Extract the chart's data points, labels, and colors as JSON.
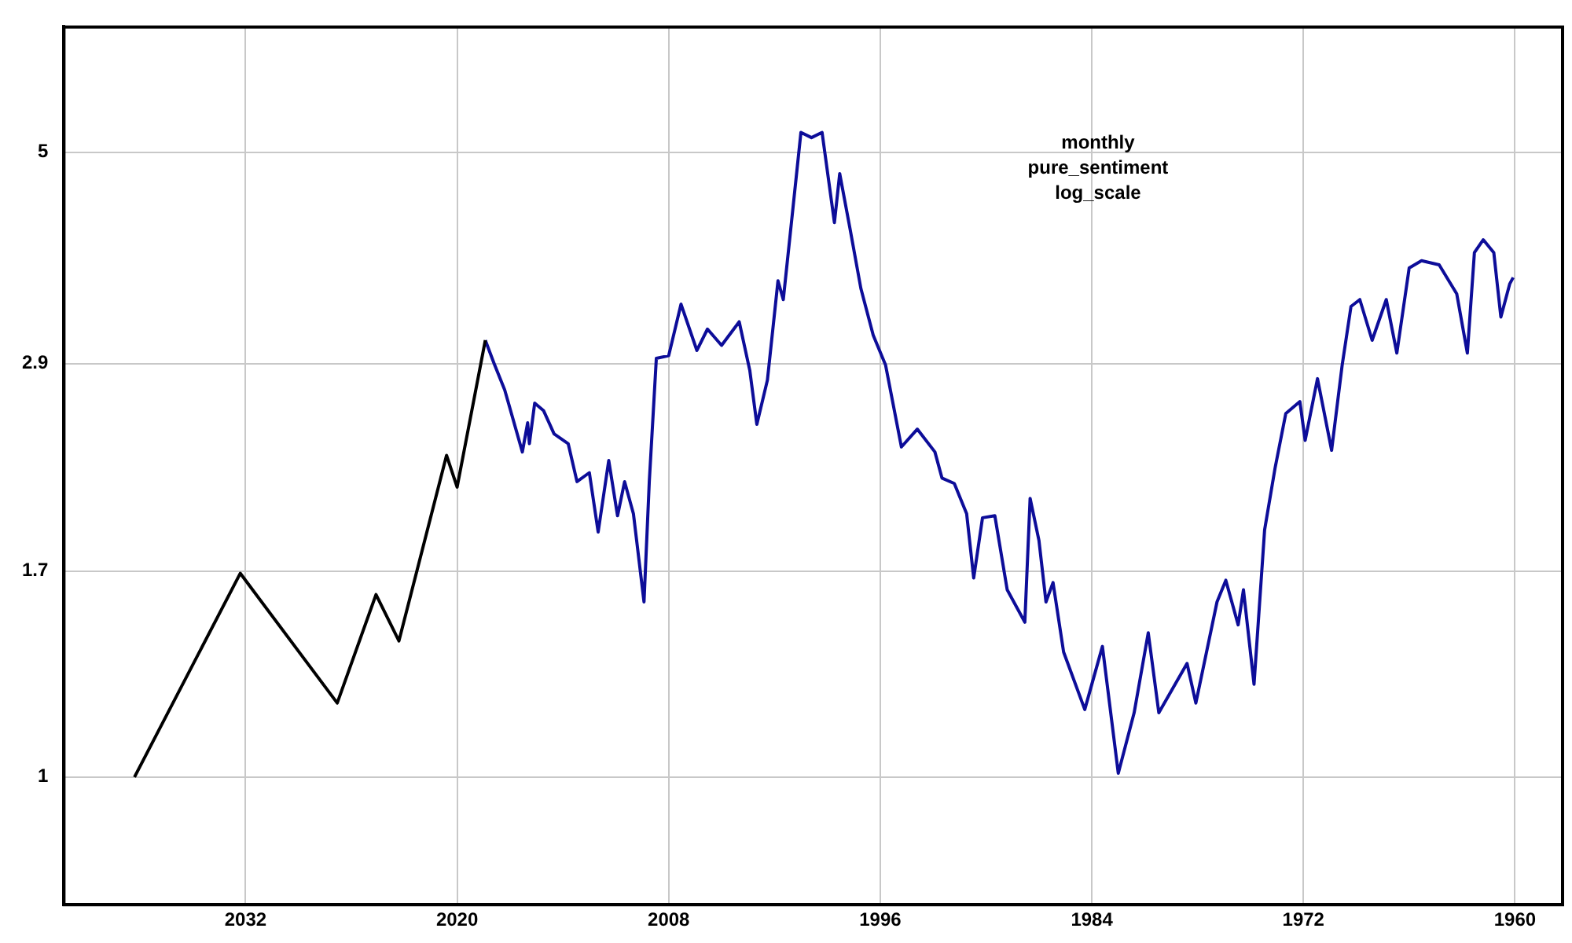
{
  "chart_data": {
    "type": "line",
    "title": "monthly\npure_sentiment\nlog_scale",
    "log": "y",
    "grid": true,
    "legend": false,
    "marker": "none",
    "line_style": "solid",
    "xlim": [
      2042.3,
      1957.3
    ],
    "xticks": [
      2032,
      2020,
      2008,
      1996,
      1984,
      1972,
      1960
    ],
    "ylim": [
      0.72,
      6.9
    ],
    "yticks": [
      1,
      1.7,
      2.9,
      5
    ],
    "series": [
      {
        "color": "#000000",
        "x": [
          2038.3,
          2032.3,
          2026.8,
          2024.6,
          2023.3,
          2020.6,
          2020.0,
          2018.4
        ],
        "values": [
          1.0,
          1.69,
          1.21,
          1.6,
          1.42,
          2.29,
          2.11,
          3.08
        ]
      },
      {
        "color": "#0d0d99",
        "x": [
          2018.4,
          2017.9,
          2017.3,
          2016.3,
          2016.0,
          2015.9,
          2015.6,
          2015.1,
          2014.5,
          2013.7,
          2013.2,
          2012.5,
          2012.0,
          2011.4,
          2010.9,
          2010.5,
          2010.0,
          2009.4,
          2009.1,
          2008.7,
          2008.0,
          2007.3,
          2006.4,
          2005.8,
          2005.0,
          2004.0,
          2003.4,
          2003.0,
          2002.4,
          2001.8,
          2001.5,
          2001.1,
          2000.5,
          1999.9,
          1999.3,
          1998.6,
          1998.3,
          1997.7,
          1997.1,
          1996.4,
          1995.7,
          1994.8,
          1993.9,
          1992.9,
          1992.5,
          1991.8,
          1991.1,
          1990.7,
          1990.2,
          1989.5,
          1988.8,
          1987.8,
          1987.5,
          1987.0,
          1986.6,
          1986.2,
          1985.6,
          1984.4,
          1983.4,
          1982.5,
          1981.6,
          1980.8,
          1980.2,
          1978.6,
          1978.1,
          1976.9,
          1976.4,
          1975.7,
          1975.4,
          1974.8,
          1974.2,
          1973.6,
          1973.0,
          1972.2,
          1971.9,
          1971.2,
          1970.4,
          1969.8,
          1969.3,
          1968.8,
          1968.1,
          1967.3,
          1966.7,
          1966.0,
          1965.3,
          1964.3,
          1963.3,
          1962.7,
          1962.3,
          1961.8,
          1961.2,
          1960.8,
          1960.3,
          1960.1
        ],
        "values": [
          3.08,
          2.9,
          2.71,
          2.31,
          2.49,
          2.36,
          2.62,
          2.57,
          2.42,
          2.36,
          2.14,
          2.19,
          1.88,
          2.26,
          1.96,
          2.14,
          1.97,
          1.57,
          2.14,
          2.94,
          2.96,
          3.38,
          3.0,
          3.17,
          3.04,
          3.23,
          2.85,
          2.48,
          2.78,
          3.59,
          3.42,
          4.06,
          5.26,
          5.19,
          5.26,
          4.17,
          4.73,
          4.09,
          3.52,
          3.12,
          2.89,
          2.34,
          2.45,
          2.31,
          2.16,
          2.13,
          1.97,
          1.67,
          1.95,
          1.96,
          1.62,
          1.49,
          2.05,
          1.84,
          1.57,
          1.65,
          1.38,
          1.19,
          1.4,
          1.01,
          1.18,
          1.45,
          1.18,
          1.34,
          1.21,
          1.57,
          1.66,
          1.48,
          1.62,
          1.27,
          1.89,
          2.22,
          2.55,
          2.63,
          2.38,
          2.79,
          2.32,
          2.89,
          3.36,
          3.42,
          3.08,
          3.42,
          2.98,
          3.71,
          3.78,
          3.74,
          3.47,
          2.98,
          3.86,
          3.99,
          3.86,
          3.27,
          3.56,
          3.62
        ]
      }
    ]
  }
}
